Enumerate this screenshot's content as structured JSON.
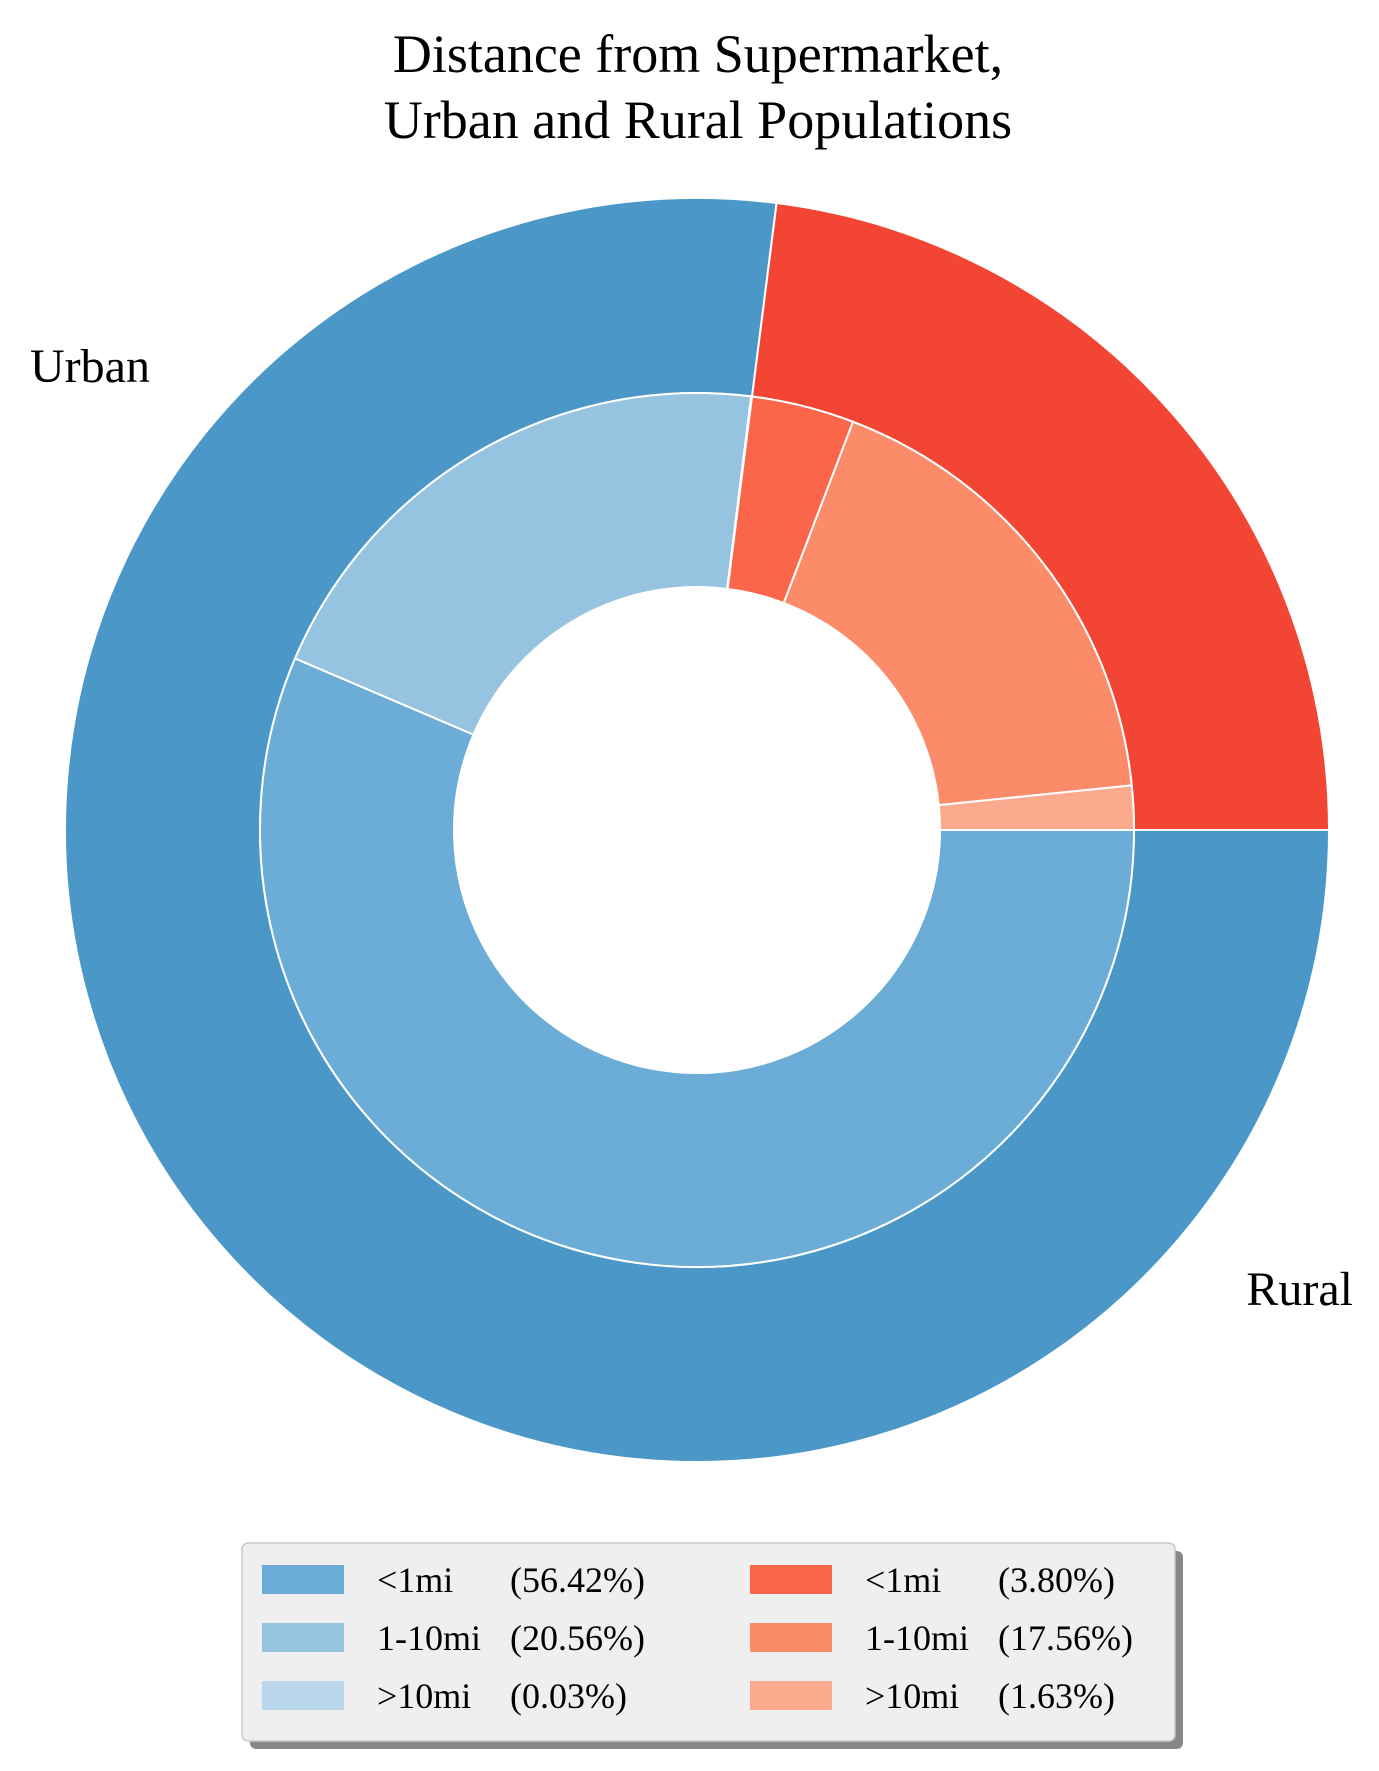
{
  "chart_data": {
    "type": "pie",
    "style": "nested-donut",
    "title": "Distance from Supermarket,\nUrban and Rural Populations",
    "title_lines": [
      "Distance from Supermarket,",
      "Urban and Rural Populations"
    ],
    "start_angle_deg": 0,
    "direction": "clockwise-in-image",
    "outer_ring": {
      "categories": [
        "Urban",
        "Rural"
      ],
      "values": [
        77.01,
        22.99
      ],
      "colors": [
        "#4a97c8",
        "#f24533"
      ]
    },
    "inner_ring": {
      "categories": [
        "<1mi",
        "1-10mi",
        ">10mi",
        "<1mi",
        "1-10mi",
        ">10mi"
      ],
      "groups": [
        "Urban",
        "Urban",
        "Urban",
        "Rural",
        "Rural",
        "Rural"
      ],
      "values": [
        56.42,
        20.56,
        0.03,
        3.8,
        17.56,
        1.63
      ],
      "colors": [
        "#6badd6",
        "#96c3e0",
        "#bad6eb",
        "#fb654a",
        "#fc8b6a",
        "#fcaa8e"
      ]
    },
    "legend": {
      "placement": "bottom-center",
      "columns": 2,
      "entries": [
        {
          "label": "<1mi",
          "pct": "(56.42%)",
          "color": "#6badd6"
        },
        {
          "label": "1-10mi",
          "pct": "(20.56%)",
          "color": "#96c3e0"
        },
        {
          "label": ">10mi",
          "pct": "(0.03%)",
          "color": "#bad6eb"
        },
        {
          "label": "<1mi",
          "pct": "(3.80%)",
          "color": "#fb654a"
        },
        {
          "label": "1-10mi",
          "pct": "(17.56%)",
          "color": "#fc8b6a"
        },
        {
          "label": ">10mi",
          "pct": "(1.63%)",
          "color": "#fcaa8e"
        }
      ]
    }
  }
}
